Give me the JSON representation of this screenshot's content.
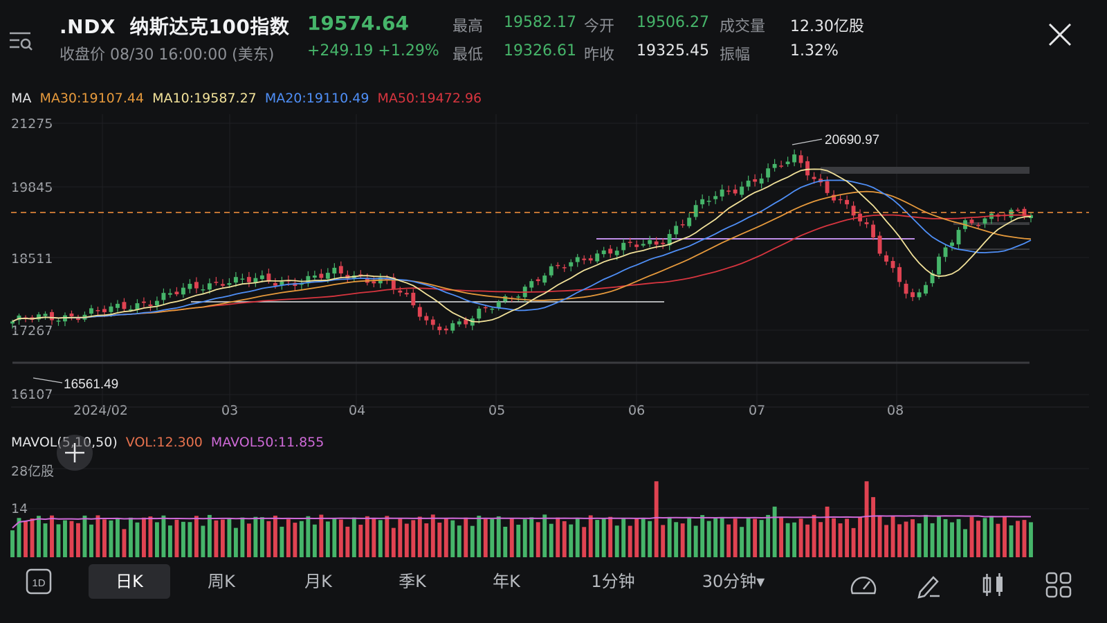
{
  "header": {
    "symbol": ".NDX",
    "name": "纳斯达克100指数",
    "price": "19574.64",
    "close_label": "收盘价 08/30 16:00:00 (美东)",
    "change": "+249.19",
    "change_pct": "+1.29%",
    "stats": {
      "high_label": "最高",
      "high": "19582.17",
      "open_label": "今开",
      "open": "19506.27",
      "volume_label": "成交量",
      "volume": "12.30亿股",
      "low_label": "最低",
      "low": "19326.61",
      "prev_close_label": "昨收",
      "prev_close": "19325.45",
      "amplitude_label": "振幅",
      "amplitude": "1.32%"
    }
  },
  "ma_legend": {
    "title": "MA",
    "ma30": "MA30:19107.44",
    "ma10": "MA10:19587.27",
    "ma20": "MA20:19110.49",
    "ma50": "MA50:19472.96"
  },
  "vol_legend": {
    "title": "MAVOL(5,10,50)",
    "vol": "VOL:12.300",
    "mavol50": "MAVOL50:11.855"
  },
  "colors": {
    "up": "#46b56a",
    "down": "#e04352",
    "ma10": "#f2e29a",
    "ma20": "#4f8ff7",
    "ma30": "#e79a3c",
    "ma50": "#d8353f",
    "mavol": "#cf6ad8",
    "current_price_line": "#e98a3b"
  },
  "chart_data": {
    "type": "candlestick",
    "y_ticks": [
      "21275",
      "19845",
      "18511",
      "17267",
      "16107"
    ],
    "x_ticks": [
      "2024/02",
      "03",
      "04",
      "05",
      "06",
      "07",
      "08"
    ],
    "ylim": [
      16107,
      21275
    ],
    "annotations": {
      "high": "20690.97",
      "low": "16561.49"
    },
    "current_price": 19574.64,
    "volume_ticks": [
      "28亿股",
      "14"
    ],
    "volume_max": 28,
    "anchors": [
      {
        "x": "2024/01/22",
        "y": 17500
      },
      {
        "x": "2024/02/12",
        "y": 17700
      },
      {
        "x": "2024/02/26",
        "y": 18020
      },
      {
        "x": "2024/03/08",
        "y": 18300
      },
      {
        "x": "2024/03/20",
        "y": 18240
      },
      {
        "x": "2024/04/01",
        "y": 18400
      },
      {
        "x": "2024/04/12",
        "y": 18300
      },
      {
        "x": "2024/04/22",
        "y": 17400
      },
      {
        "x": "2024/04/30",
        "y": 17500
      },
      {
        "x": "2024/05/15",
        "y": 18320
      },
      {
        "x": "2024/05/27",
        "y": 18800
      },
      {
        "x": "2024/06/10",
        "y": 19000
      },
      {
        "x": "2024/06/20",
        "y": 19760
      },
      {
        "x": "2024/07/10",
        "y": 20600
      },
      {
        "x": "2024/07/25",
        "y": 19300
      },
      {
        "x": "2024/08/05",
        "y": 17850
      },
      {
        "x": "2024/08/15",
        "y": 19400
      },
      {
        "x": "2024/08/30",
        "y": 19574
      }
    ]
  },
  "toolbar": {
    "period_icon": "1D",
    "tabs": [
      "日K",
      "周K",
      "月K",
      "季K",
      "年K",
      "1分钟",
      "30分钟▾"
    ]
  }
}
